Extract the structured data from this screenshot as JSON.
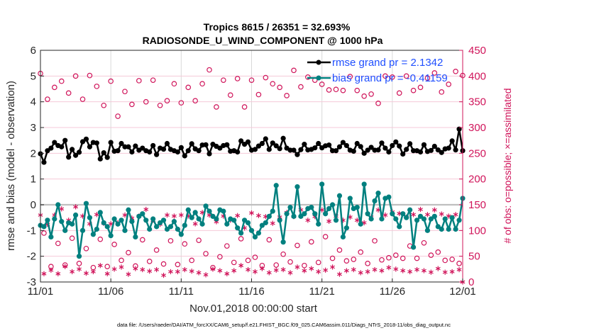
{
  "chart_data": {
    "type": "line",
    "title_line1": "Tropics 8615 / 26351 = 32.693%",
    "title_line2": "RADIOSONDE_U_WIND_COMPONENT @ 1000 hPa",
    "xlabel": "Nov.01,2018 00:00:00 start",
    "ylabel_left": "rmse and bias (model - observation)",
    "ylabel_right": "# of obs: o=possible; ×=assimilated",
    "footer": "data file: /Users/raeder/DAI/ATM_forcXX/CAM6_setup/f.e21.FHIST_BGC.f09_025.CAM6assim.011/Diags_NTrS_2018-11/obs_diag_output.nc",
    "x_start_day": 0,
    "x_end_day": 30,
    "x_step_days": 0.25,
    "x_ticks": [
      {
        "day": 0,
        "label": "11/01"
      },
      {
        "day": 5,
        "label": "11/06"
      },
      {
        "day": 10,
        "label": "11/11"
      },
      {
        "day": 15,
        "label": "11/16"
      },
      {
        "day": 20,
        "label": "11/21"
      },
      {
        "day": 25,
        "label": "11/26"
      },
      {
        "day": 30,
        "label": "12/01"
      }
    ],
    "ylim_left": [
      -3,
      6
    ],
    "yticks_left": [
      "-3",
      "-2",
      "-1",
      "0",
      "1",
      "2",
      "3",
      "4",
      "5",
      "6"
    ],
    "ylim_right": [
      0,
      450
    ],
    "yticks_right": [
      "0",
      "50",
      "100",
      "150",
      "200",
      "250",
      "300",
      "350",
      "400",
      "450"
    ],
    "grid": "x-major-gray, y-right-pink",
    "legend_position": "top-right",
    "series": [
      {
        "name": "rmse",
        "legend_label": "rmse grand pr = 2.1342",
        "color": "#000000",
        "axis": "left",
        "values": [
          1.98,
          1.65,
          2.1,
          2.2,
          2.42,
          2.3,
          2.25,
          2.5,
          1.85,
          2.15,
          1.92,
          2.04,
          2.45,
          2.55,
          2.25,
          2.42,
          2.4,
          1.78,
          2.02,
          1.84,
          2.42,
          2.08,
          2.1,
          2.38,
          2.25,
          2.25,
          2.05,
          2.28,
          2.12,
          2.2,
          2.1,
          2.05,
          2.3,
          1.95,
          2.2,
          2.16,
          2.38,
          2.15,
          2.1,
          2.05,
          2.22,
          1.9,
          2.1,
          2.37,
          2.17,
          2.1,
          2.32,
          2.33,
          1.98,
          2.35,
          2.27,
          2.2,
          2.3,
          2.33,
          2.08,
          2.1,
          2.05,
          2.48,
          2.35,
          2.44,
          2.12,
          2.15,
          2.28,
          2.38,
          2.56,
          2.15,
          2.4,
          2.29,
          2.18,
          2.58,
          2.2,
          2.12,
          2.12,
          1.95,
          2.14,
          2.35,
          2.13,
          2.15,
          2.21,
          2.38,
          2.21,
          2.29,
          2.32,
          2.1,
          2.1,
          2.25,
          2.42,
          2.3,
          2.12,
          2.08,
          2.38,
          2.26,
          2.0,
          2.12,
          2.23,
          2.12,
          2.13,
          2.4,
          2.2,
          2.05,
          2.3,
          2.44,
          2.28,
          1.97,
          2.15,
          2.37,
          2.1,
          2.1,
          2.05,
          2.33,
          2.07,
          2.11,
          2.27,
          2.13,
          2.03,
          2.17,
          2.2,
          2.48,
          2.13,
          2.94,
          2.1
        ]
      },
      {
        "name": "bias",
        "legend_label": "bias grand pr = -0.41159",
        "color": "#00807f",
        "axis": "left",
        "values": [
          -0.8,
          -0.85,
          -0.6,
          -1.25,
          -0.55,
          0.0,
          -0.65,
          -1.0,
          -0.7,
          -0.75,
          -0.4,
          -2.0,
          -1.0,
          0.05,
          -0.5,
          -1.15,
          -0.95,
          -0.3,
          -0.7,
          -0.85,
          -1.2,
          -0.55,
          -0.75,
          -0.6,
          -1.0,
          -0.2,
          -0.65,
          -1.25,
          -0.45,
          -0.35,
          -0.6,
          -0.95,
          -0.55,
          -0.85,
          -0.7,
          -0.6,
          -0.95,
          -0.85,
          -0.65,
          -0.95,
          -1.15,
          -0.8,
          -0.2,
          -0.5,
          -0.3,
          -0.55,
          -0.75,
          -0.05,
          -0.25,
          -0.45,
          -0.55,
          -0.2,
          -0.25,
          -0.75,
          -0.55,
          -0.6,
          -0.9,
          -1.1,
          -0.6,
          -0.7,
          -1.0,
          -1.25,
          -1.1,
          -0.8,
          -0.7,
          -0.45,
          -0.25,
          0.75,
          -0.6,
          -1.45,
          -0.35,
          -0.1,
          -0.45,
          0.7,
          -0.45,
          -0.35,
          -0.15,
          -0.1,
          -0.35,
          -0.75,
          0.8,
          -0.35,
          -0.15,
          0.0,
          -0.6,
          0.35,
          -1.25,
          -0.9,
          0.25,
          -0.15,
          -0.1,
          -0.75,
          0.8,
          -0.35,
          -0.55,
          0.15,
          0.45,
          -0.55,
          0.25,
          0.3,
          -0.35,
          -0.55,
          -0.85,
          -0.35,
          -0.5,
          -0.2,
          -1.65,
          -0.6,
          -0.45,
          -0.55,
          -1.0,
          -0.55,
          -0.45,
          -0.85,
          -0.95,
          -0.55,
          -0.95,
          -0.5,
          -0.95,
          -0.6,
          0.25
        ]
      },
      {
        "name": "obs_possible",
        "marker": "circle",
        "color": "#d0145a",
        "axis": "right",
        "values": [
          405,
          95,
          355,
          30,
          378,
          75,
          390,
          33,
          367,
          85,
          400,
          36,
          355,
          65,
          401,
          28,
          380,
          83,
          343,
          30,
          390,
          73,
          322,
          42,
          370,
          57,
          345,
          31,
          391,
          82,
          350,
          40,
          392,
          62,
          343,
          35,
          352,
          80,
          385,
          34,
          348,
          74,
          378,
          42,
          352,
          81,
          385,
          55,
          412,
          28,
          340,
          49,
          392,
          70,
          363,
          38,
          395,
          84,
          340,
          42,
          392,
          48,
          364,
          32,
          397,
          82,
          385,
          33,
          378,
          54,
          362,
          39,
          411,
          71,
          379,
          32,
          398,
          78,
          392,
          38,
          384,
          88,
          373,
          46,
          374,
          62,
          372,
          41,
          399,
          44,
          372,
          58,
          361,
          36,
          365,
          80,
          347,
          43,
          400,
          47,
          398,
          52,
          367,
          46,
          400,
          70,
          372,
          46,
          378,
          76,
          396,
          52,
          406,
          58,
          369,
          42,
          384,
          44,
          409,
          36,
          401
        ]
      },
      {
        "name": "obs_assimilated",
        "marker": "asterisk",
        "color": "#d0145a",
        "axis": "right",
        "values": [
          130,
          16,
          112,
          23,
          130,
          16,
          142,
          30,
          120,
          20,
          146,
          25,
          128,
          17,
          113,
          20,
          131,
          32,
          114,
          16,
          113,
          25,
          115,
          29,
          130,
          15,
          124,
          26,
          128,
          24,
          141,
          21,
          120,
          24,
          112,
          13,
          130,
          20,
          128,
          20,
          130,
          24,
          128,
          21,
          113,
          18,
          135,
          14,
          130,
          25,
          117,
          22,
          128,
          16,
          120,
          22,
          129,
          32,
          105,
          24,
          134,
          20,
          129,
          26,
          127,
          18,
          114,
          23,
          126,
          24,
          135,
          18,
          127,
          29,
          140,
          22,
          120,
          26,
          127,
          20,
          140,
          23,
          118,
          29,
          128,
          15,
          120,
          22,
          126,
          24,
          120,
          18,
          115,
          20,
          126,
          24,
          140,
          22,
          130,
          28,
          136,
          25,
          133,
          22,
          126,
          20,
          131,
          24,
          141,
          22,
          131,
          19,
          140,
          26,
          132,
          19,
          128,
          20,
          131,
          24,
          0
        ]
      }
    ]
  }
}
